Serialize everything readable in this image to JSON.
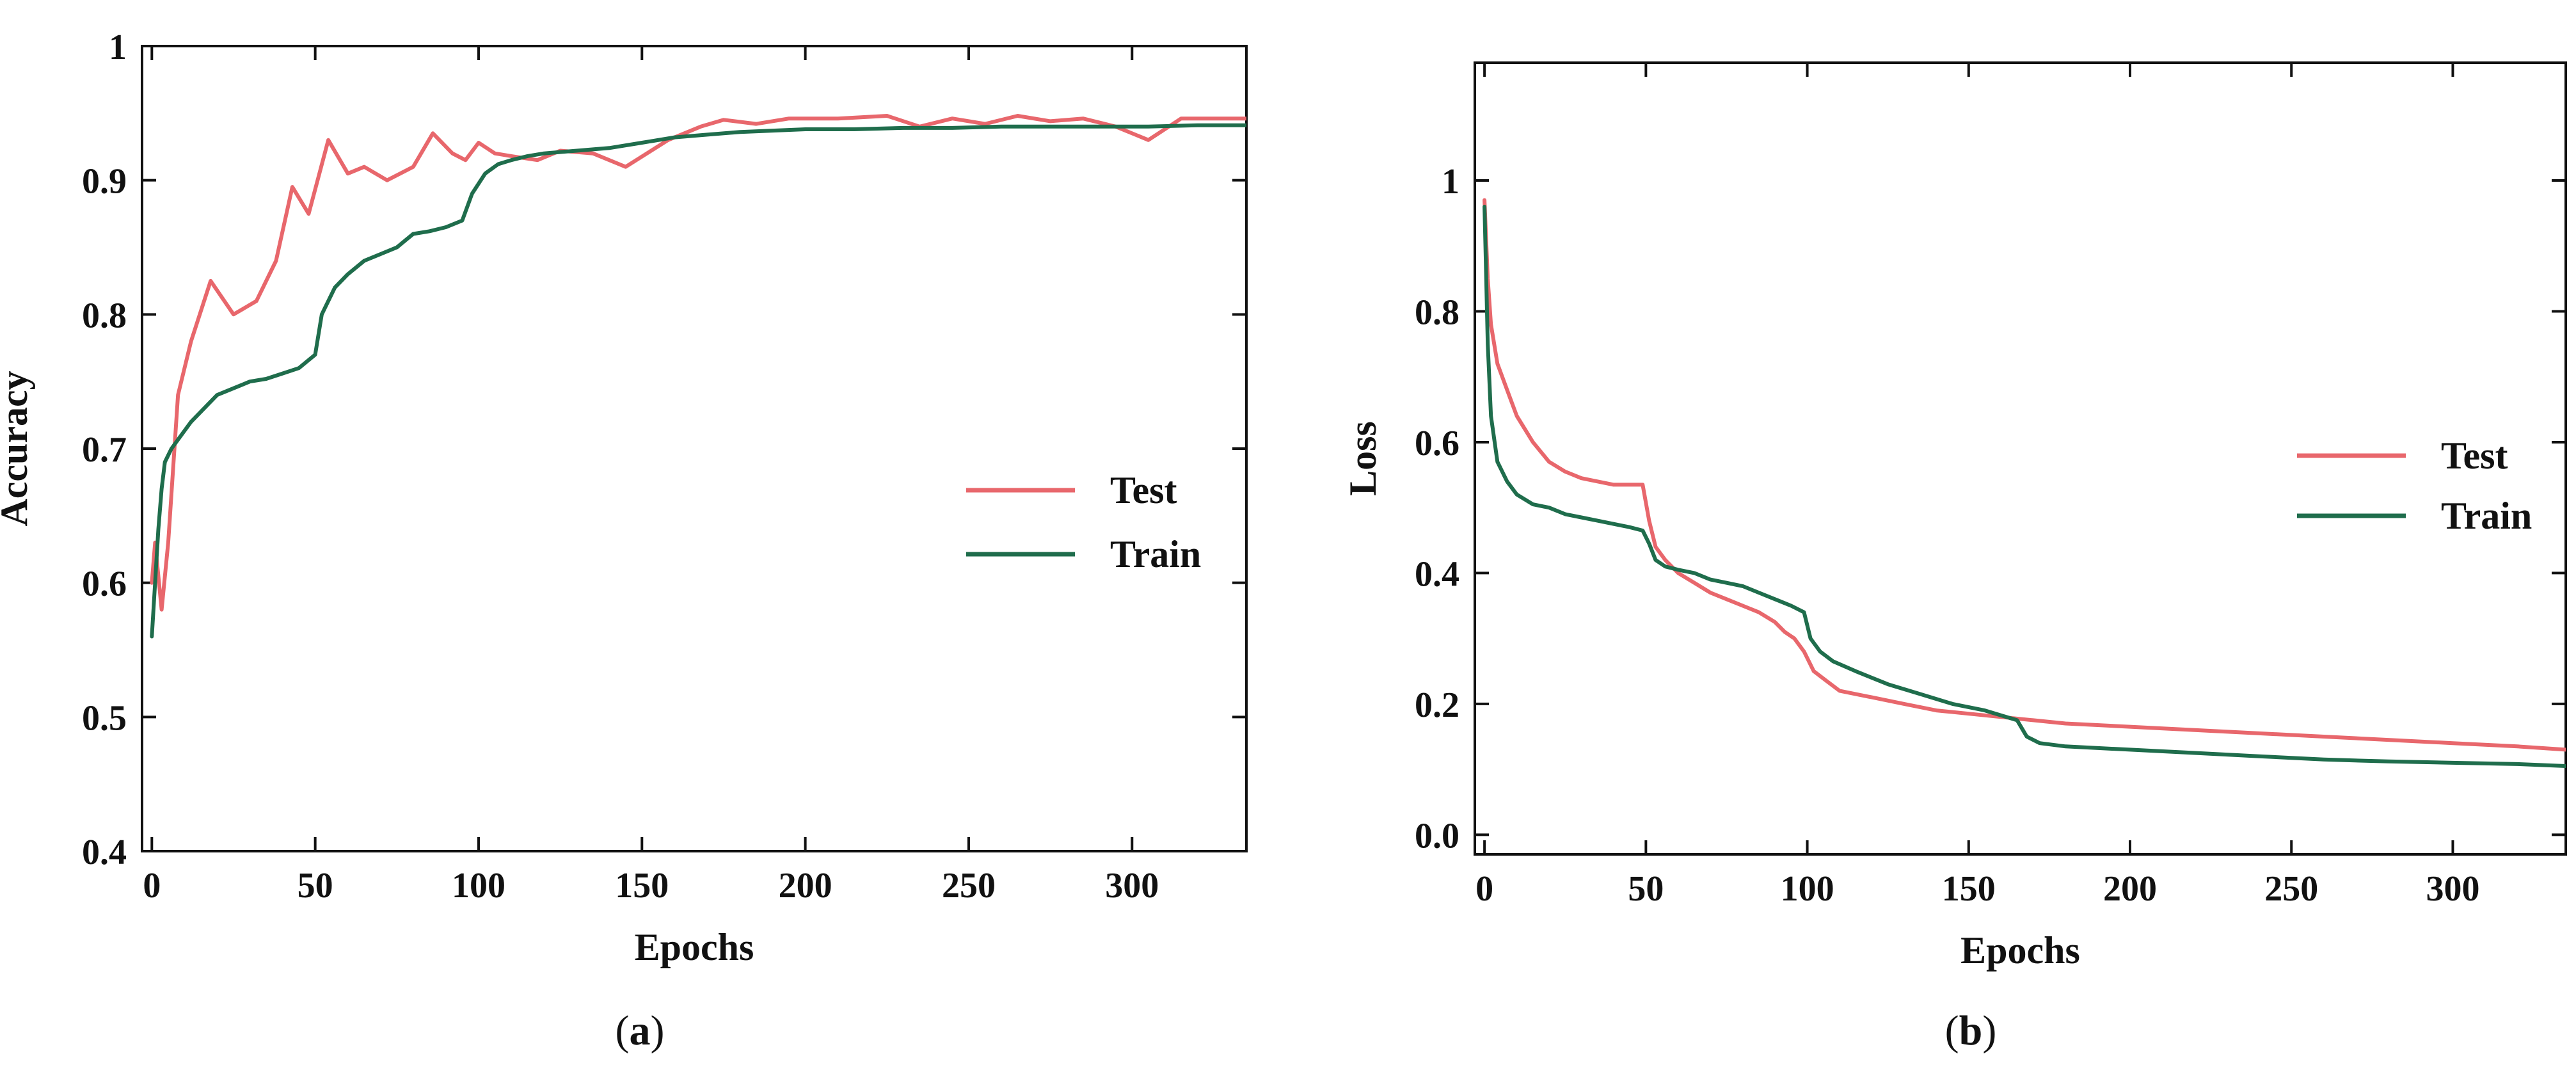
{
  "chart_data": [
    {
      "type": "line",
      "panel_label": "a",
      "title": "",
      "xlabel": "Epochs",
      "ylabel": "Accuracy",
      "xlim": [
        -3,
        335
      ],
      "ylim": [
        0.4,
        1.0
      ],
      "xticks": [
        0,
        50,
        100,
        150,
        200,
        250,
        300
      ],
      "yticks": [
        0.4,
        0.5,
        0.6,
        0.7,
        0.8,
        0.9,
        1.0
      ],
      "ytick_labels": [
        "0.4",
        "0.5",
        "0.6",
        "0.7",
        "0.8",
        "0.9",
        "1"
      ],
      "legend_position": "center-right",
      "series": [
        {
          "name": "Test",
          "color": "#e8676c",
          "x": [
            0,
            1,
            3,
            5,
            8,
            12,
            18,
            25,
            32,
            38,
            43,
            48,
            54,
            60,
            65,
            72,
            80,
            86,
            92,
            96,
            100,
            105,
            110,
            118,
            125,
            135,
            145,
            158,
            168,
            175,
            185,
            195,
            210,
            225,
            235,
            245,
            255,
            265,
            275,
            285,
            295,
            305,
            315,
            325,
            335
          ],
          "y": [
            0.6,
            0.63,
            0.58,
            0.63,
            0.74,
            0.78,
            0.825,
            0.8,
            0.81,
            0.84,
            0.895,
            0.875,
            0.93,
            0.905,
            0.91,
            0.9,
            0.91,
            0.935,
            0.92,
            0.915,
            0.928,
            0.92,
            0.918,
            0.915,
            0.922,
            0.92,
            0.91,
            0.93,
            0.94,
            0.945,
            0.942,
            0.946,
            0.946,
            0.948,
            0.94,
            0.946,
            0.942,
            0.948,
            0.944,
            0.946,
            0.94,
            0.93,
            0.946,
            0.946,
            0.946
          ]
        },
        {
          "name": "Train",
          "color": "#1f6d4c",
          "x": [
            0,
            1,
            2,
            3,
            4,
            6,
            9,
            12,
            16,
            20,
            25,
            30,
            35,
            40,
            45,
            50,
            52,
            56,
            60,
            65,
            70,
            75,
            80,
            85,
            90,
            95,
            98,
            102,
            106,
            110,
            115,
            120,
            130,
            140,
            150,
            160,
            170,
            180,
            190,
            200,
            215,
            230,
            245,
            260,
            275,
            290,
            305,
            320,
            335
          ],
          "y": [
            0.56,
            0.6,
            0.64,
            0.67,
            0.69,
            0.7,
            0.71,
            0.72,
            0.73,
            0.74,
            0.745,
            0.75,
            0.752,
            0.756,
            0.76,
            0.77,
            0.8,
            0.82,
            0.83,
            0.84,
            0.845,
            0.85,
            0.86,
            0.862,
            0.865,
            0.87,
            0.89,
            0.905,
            0.912,
            0.915,
            0.918,
            0.92,
            0.922,
            0.924,
            0.928,
            0.932,
            0.934,
            0.936,
            0.937,
            0.938,
            0.938,
            0.939,
            0.939,
            0.94,
            0.94,
            0.94,
            0.94,
            0.941,
            0.941
          ]
        }
      ]
    },
    {
      "type": "line",
      "panel_label": "b",
      "title": "",
      "xlabel": "Epochs",
      "ylabel": "Loss",
      "xlim": [
        -3,
        335
      ],
      "ylim": [
        -0.03,
        1.18
      ],
      "xticks": [
        0,
        50,
        100,
        150,
        200,
        250,
        300
      ],
      "yticks": [
        0.0,
        0.2,
        0.4,
        0.6,
        0.8,
        1.0
      ],
      "ytick_labels": [
        "0.0",
        "0.2",
        "0.4",
        "0.6",
        "0.8",
        "1"
      ],
      "legend_position": "center-right",
      "series": [
        {
          "name": "Test",
          "color": "#e8676c",
          "x": [
            0,
            1,
            2,
            4,
            7,
            10,
            15,
            20,
            25,
            30,
            35,
            40,
            45,
            49,
            51,
            53,
            56,
            60,
            65,
            70,
            75,
            80,
            85,
            90,
            93,
            96,
            99,
            102,
            106,
            110,
            120,
            130,
            140,
            150,
            160,
            170,
            180,
            200,
            220,
            240,
            260,
            280,
            300,
            320,
            335
          ],
          "y": [
            0.97,
            0.85,
            0.78,
            0.72,
            0.68,
            0.64,
            0.6,
            0.57,
            0.555,
            0.545,
            0.54,
            0.535,
            0.535,
            0.535,
            0.48,
            0.44,
            0.42,
            0.4,
            0.385,
            0.37,
            0.36,
            0.35,
            0.34,
            0.325,
            0.31,
            0.3,
            0.28,
            0.25,
            0.235,
            0.22,
            0.21,
            0.2,
            0.19,
            0.185,
            0.18,
            0.175,
            0.17,
            0.165,
            0.16,
            0.155,
            0.15,
            0.145,
            0.14,
            0.135,
            0.13
          ]
        },
        {
          "name": "Train",
          "color": "#1f6d4c",
          "x": [
            0,
            1,
            2,
            4,
            7,
            10,
            15,
            20,
            25,
            30,
            35,
            40,
            45,
            49,
            51,
            53,
            56,
            60,
            65,
            70,
            75,
            80,
            85,
            90,
            95,
            99,
            101,
            104,
            108,
            115,
            125,
            135,
            145,
            155,
            165,
            168,
            172,
            180,
            200,
            220,
            240,
            260,
            280,
            300,
            320,
            335
          ],
          "y": [
            0.96,
            0.75,
            0.64,
            0.57,
            0.54,
            0.52,
            0.505,
            0.5,
            0.49,
            0.485,
            0.48,
            0.475,
            0.47,
            0.465,
            0.445,
            0.42,
            0.41,
            0.405,
            0.4,
            0.39,
            0.385,
            0.38,
            0.37,
            0.36,
            0.35,
            0.34,
            0.3,
            0.28,
            0.265,
            0.25,
            0.23,
            0.215,
            0.2,
            0.19,
            0.175,
            0.15,
            0.14,
            0.135,
            0.13,
            0.125,
            0.12,
            0.115,
            0.112,
            0.11,
            0.108,
            0.105
          ]
        }
      ]
    }
  ],
  "captions": [
    {
      "open": "(",
      "letter": "a",
      "close": ")"
    },
    {
      "open": "(",
      "letter": "b",
      "close": ")"
    }
  ]
}
